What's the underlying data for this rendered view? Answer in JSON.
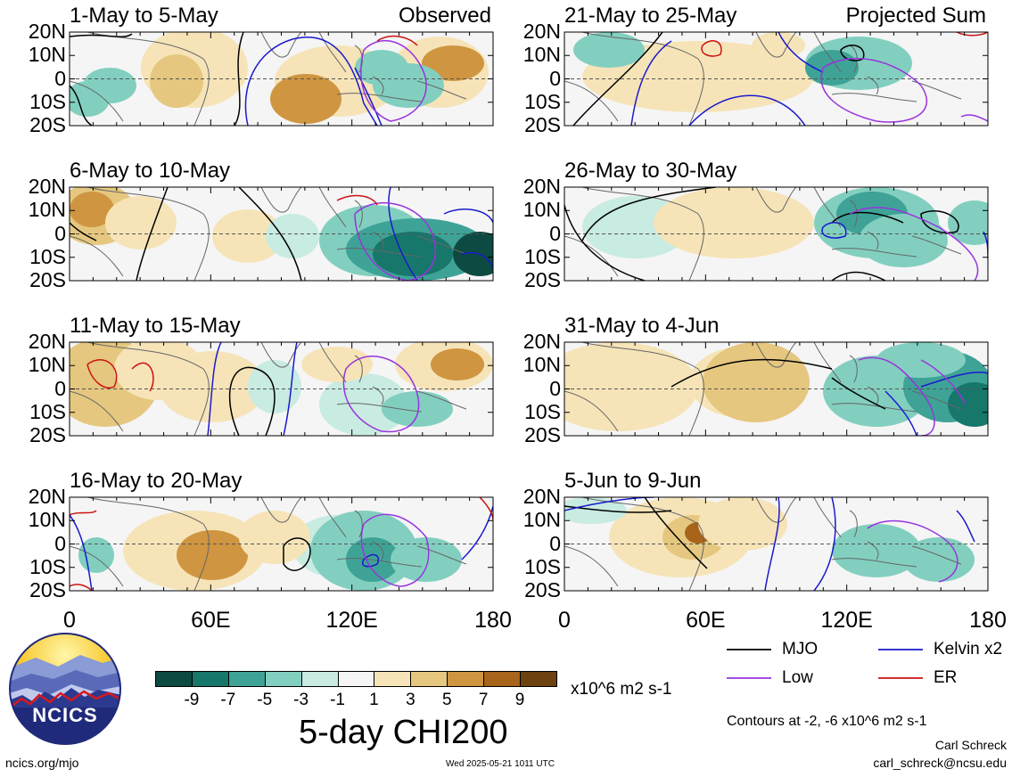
{
  "panels": [
    {
      "title": "1-May to 5-May",
      "corner_label": "Observed"
    },
    {
      "title": "6-May to 10-May",
      "corner_label": ""
    },
    {
      "title": "11-May to 15-May",
      "corner_label": ""
    },
    {
      "title": "16-May to 20-May",
      "corner_label": ""
    },
    {
      "title": "21-May to 25-May",
      "corner_label": "Projected Sum"
    },
    {
      "title": "26-May to 30-May",
      "corner_label": ""
    },
    {
      "title": "31-May to 4-Jun",
      "corner_label": ""
    },
    {
      "title": "5-Jun to 9-Jun",
      "corner_label": ""
    }
  ],
  "lat_labels": [
    "20N",
    "10N",
    "0",
    "10S",
    "20S"
  ],
  "lon_labels": [
    "0",
    "60E",
    "120E",
    "180"
  ],
  "colorbar": {
    "colors": [
      "#0d4a42",
      "#17776b",
      "#3ea396",
      "#82cfc0",
      "#c8ebe2",
      "#f5f5f5",
      "#f6e4b8",
      "#e5c77f",
      "#cf9540",
      "#a7641a",
      "#6e4110"
    ],
    "labels": [
      "-9",
      "-7",
      "-5",
      "-3",
      "-1",
      "1",
      "3",
      "5",
      "7",
      "9"
    ],
    "units": "x10^6 m2 s-1"
  },
  "title": "5-day CHI200",
  "legend": [
    {
      "label": "MJO",
      "color": "#000000"
    },
    {
      "label": "Kelvin x2",
      "color": "#1a1acc"
    },
    {
      "label": "Low",
      "color": "#9933dd"
    },
    {
      "label": "ER",
      "color": "#cc1111"
    }
  ],
  "contour_note": "Contours at -2, -6 x10^6 m2 s-1",
  "author": "Carl Schreck",
  "email": "carl_schreck@ncsu.edu",
  "website": "ncics.org/mjo",
  "timestamp": "Wed 2025-05-21 1011 UTC",
  "logo_text": "NCICS",
  "icons": {
    "logo": "ncics-logo-icon"
  }
}
